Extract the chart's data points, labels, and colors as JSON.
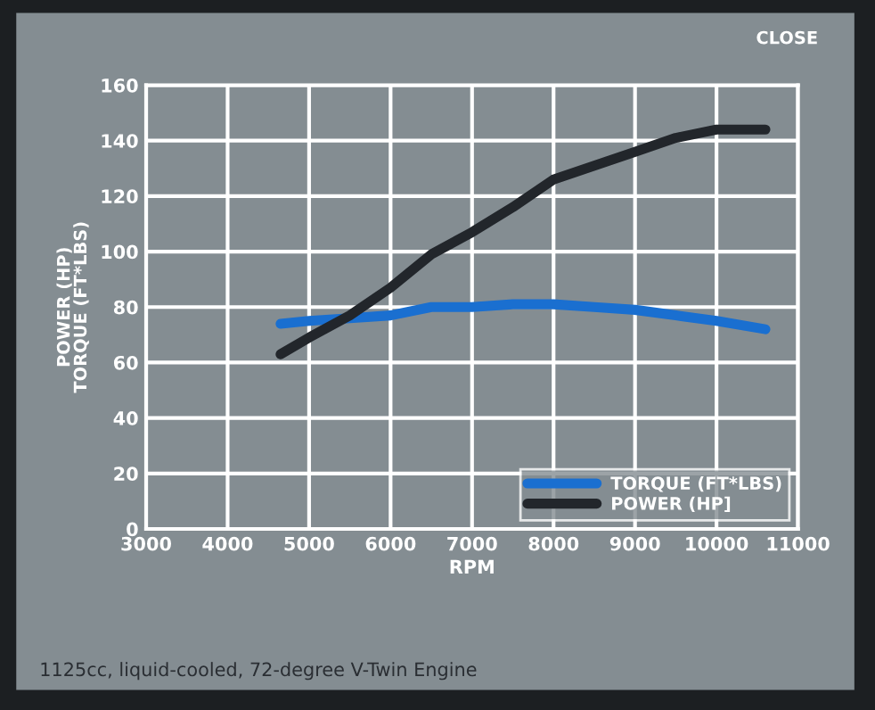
{
  "chart_data": {
    "type": "line",
    "xlabel": "RPM",
    "ylabel": "POWER (HP)\nTORQUE (FT*LBS)",
    "annotations": [
      "CLOSE",
      "1125cc, liquid-cooled, 72-degree V-Twin Engine"
    ],
    "xlim": [
      3000,
      11000
    ],
    "xticks": [
      3000,
      4000,
      5000,
      6000,
      7000,
      8000,
      9000,
      10000,
      11000
    ],
    "ylim": [
      0,
      160
    ],
    "yticks": [
      0,
      20,
      40,
      60,
      80,
      100,
      120,
      140,
      160
    ],
    "grid": true,
    "legend": "bottom right",
    "marker": "none",
    "line_style": "solid",
    "series": [
      {
        "name": "TORQUE (FT*LBS)",
        "color": "#1a6fd0",
        "x": [
          4650,
          5000,
          5500,
          6000,
          6500,
          7000,
          7500,
          8000,
          8500,
          9000,
          9500,
          10000,
          10600
        ],
        "values": [
          74,
          75,
          76,
          77,
          80,
          80,
          81,
          81,
          80,
          79,
          77,
          75,
          72
        ]
      },
      {
        "name": "POWER (HP]",
        "color": "#22262b",
        "x": [
          4650,
          5000,
          5500,
          6000,
          6500,
          7000,
          7500,
          8000,
          8500,
          9000,
          9500,
          10000,
          10600
        ],
        "values": [
          63,
          69,
          77,
          87,
          99,
          107,
          116,
          126,
          131,
          136,
          141,
          144,
          144
        ]
      }
    ]
  }
}
